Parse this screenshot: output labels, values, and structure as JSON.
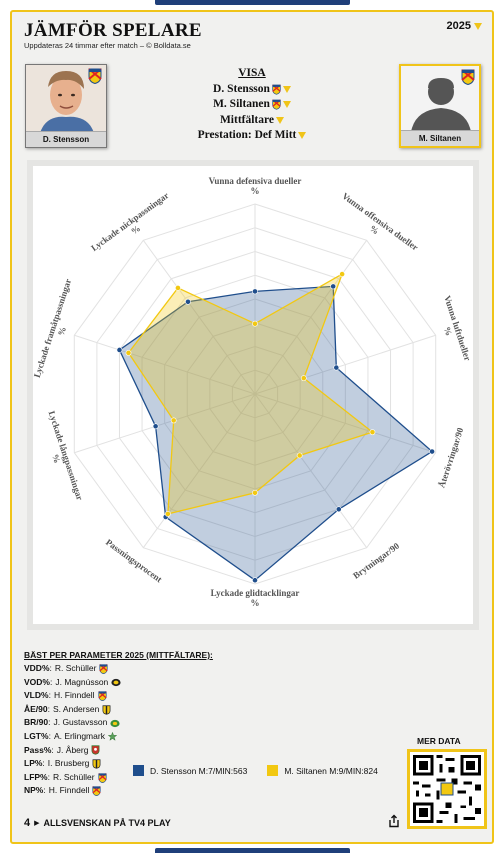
{
  "header": {
    "title": "JÄMFÖR SPELARE",
    "subtitle": "Uppdateras 24 timmar efter match – © Bolldata.se",
    "year": "2025"
  },
  "players": [
    {
      "name": "D. Stensson",
      "label": "D. Stensson M:7/MIN:563",
      "color": "#1f4e8c"
    },
    {
      "name": "M. Siltanen",
      "label": "M. Siltanen M:9/MIN:824",
      "color": "#f2c811"
    }
  ],
  "visa": {
    "heading": "VISA",
    "player1": "D. Stensson",
    "player2": "M. Siltanen",
    "position": "Mittfältare",
    "prestation": "Prestation: Def Mitt"
  },
  "chart_data": {
    "type": "radar",
    "axes": [
      "Vunna defensiva dueller %",
      "Vunna offensiva dueller %",
      "Vunna luftdueller %",
      "Återövringar/90",
      "Brytningar/90",
      "Lyckade glidtacklingar %",
      "Passningsprocent",
      "Lyckade långpassningar %",
      "Lyckade framåtpassningar %",
      "Lyckade nickpassningar %"
    ],
    "range": [
      0,
      100
    ],
    "rings": 8,
    "series": [
      {
        "name": "D. Stensson M:7/MIN:563",
        "values": [
          54,
          70,
          45,
          98,
          75,
          98,
          80,
          55,
          75,
          60
        ]
      },
      {
        "name": "M. Siltanen M:9/MIN:824",
        "values": [
          37,
          78,
          27,
          65,
          40,
          52,
          78,
          45,
          70,
          69
        ]
      }
    ]
  },
  "best": {
    "heading": "BÄST PER PARAMETER 2025 (MITTFÄLTARE):",
    "items": [
      {
        "key": "VDD%",
        "name": "R. Schüller",
        "badge": "dif"
      },
      {
        "key": "VOD%",
        "name": "J. Magnússon",
        "badge": "aik"
      },
      {
        "key": "VLD%",
        "name": "H. Finndell",
        "badge": "dif"
      },
      {
        "key": "ÅE/90",
        "name": "S. Andersen",
        "badge": "yb"
      },
      {
        "key": "BR/90",
        "name": "J. Gustavsson",
        "badge": "green"
      },
      {
        "key": "LGT%",
        "name": "A. Erlingmark",
        "badge": "star"
      },
      {
        "key": "Pass%",
        "name": "J. Åberg",
        "badge": "red"
      },
      {
        "key": "LP%",
        "name": "I. Brusberg",
        "badge": "yb"
      },
      {
        "key": "LFP%",
        "name": "R. Schüller",
        "badge": "dif"
      },
      {
        "key": "NP%",
        "name": "H. Finndell",
        "badge": "dif"
      }
    ]
  },
  "more": {
    "label": "MER DATA"
  },
  "footer": {
    "logo": "4",
    "text": "ALLSVENSKAN PÅ TV4 PLAY"
  },
  "icons": {
    "share": "share-icon",
    "qr": "qr-code-icon",
    "chevron": "chevron-down-icon",
    "club": "club-badge-icon"
  }
}
